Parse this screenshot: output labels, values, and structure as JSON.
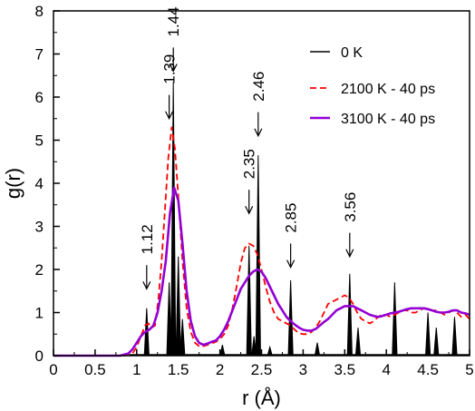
{
  "chart_data": {
    "type": "line",
    "xlabel": "r (Å)",
    "ylabel": "g(r)",
    "xlim": [
      0,
      5
    ],
    "ylim": [
      0,
      8
    ],
    "xticks": [
      0,
      0.5,
      1,
      1.5,
      2,
      2.5,
      3,
      3.5,
      4,
      4.5,
      5
    ],
    "xtick_labels": [
      "0",
      "0.5",
      "1",
      "1.5",
      "2",
      "2.5",
      "3",
      "3.5",
      "4",
      "4.5",
      "5"
    ],
    "yticks": [
      0,
      1,
      2,
      3,
      4,
      5,
      6,
      7,
      8
    ],
    "ytick_labels": [
      "0",
      "1",
      "2",
      "3",
      "4",
      "5",
      "6",
      "7",
      "8"
    ],
    "grid": false,
    "legend_position": "top-right",
    "series": [
      {
        "name": "0 K",
        "style": "spikes",
        "color": "#000000",
        "peaks": [
          {
            "x": 1.12,
            "y": 1.1
          },
          {
            "x": 1.39,
            "y": 1.7
          },
          {
            "x": 1.44,
            "y": 6.35
          },
          {
            "x": 1.5,
            "y": 2.3
          },
          {
            "x": 1.55,
            "y": 0.85
          },
          {
            "x": 2.03,
            "y": 0.25
          },
          {
            "x": 2.35,
            "y": 2.55
          },
          {
            "x": 2.41,
            "y": 0.45
          },
          {
            "x": 2.46,
            "y": 4.65
          },
          {
            "x": 2.6,
            "y": 0.2
          },
          {
            "x": 2.85,
            "y": 1.75
          },
          {
            "x": 3.17,
            "y": 0.3
          },
          {
            "x": 3.56,
            "y": 1.9
          },
          {
            "x": 3.66,
            "y": 0.65
          },
          {
            "x": 4.1,
            "y": 1.7
          },
          {
            "x": 4.5,
            "y": 1.0
          },
          {
            "x": 4.6,
            "y": 0.65
          },
          {
            "x": 4.82,
            "y": 0.9
          }
        ]
      },
      {
        "name": "2100 K - 40 ps",
        "style": "dashed",
        "color": "#ff0000",
        "x": [
          0,
          0.85,
          0.95,
          1.0,
          1.05,
          1.1,
          1.14,
          1.18,
          1.22,
          1.26,
          1.3,
          1.34,
          1.38,
          1.42,
          1.46,
          1.5,
          1.55,
          1.6,
          1.65,
          1.7,
          1.75,
          1.8,
          1.85,
          1.9,
          1.95,
          2.0,
          2.05,
          2.1,
          2.15,
          2.2,
          2.25,
          2.3,
          2.35,
          2.4,
          2.45,
          2.5,
          2.55,
          2.6,
          2.65,
          2.7,
          2.75,
          2.8,
          2.85,
          2.9,
          2.95,
          3.0,
          3.05,
          3.1,
          3.15,
          3.2,
          3.25,
          3.3,
          3.35,
          3.4,
          3.45,
          3.5,
          3.55,
          3.6,
          3.65,
          3.7,
          3.75,
          3.8,
          3.85,
          3.9,
          3.95,
          4.0,
          4.05,
          4.1,
          4.15,
          4.2,
          4.25,
          4.3,
          4.35,
          4.4,
          4.45,
          4.5,
          4.55,
          4.6,
          4.65,
          4.7,
          4.75,
          4.8,
          4.85,
          4.9,
          4.95,
          5.0
        ],
        "y": [
          0,
          0,
          0.05,
          0.2,
          0.45,
          0.7,
          0.75,
          0.65,
          0.7,
          1.3,
          2.2,
          3.4,
          4.6,
          5.3,
          4.8,
          3.7,
          2.2,
          1.1,
          0.55,
          0.3,
          0.22,
          0.22,
          0.25,
          0.28,
          0.32,
          0.38,
          0.5,
          0.7,
          1.1,
          1.6,
          2.15,
          2.5,
          2.6,
          2.55,
          2.35,
          2.0,
          1.6,
          1.25,
          1.0,
          0.85,
          0.8,
          0.75,
          0.7,
          0.6,
          0.52,
          0.5,
          0.5,
          0.55,
          0.65,
          0.8,
          1.0,
          1.2,
          1.25,
          1.3,
          1.35,
          1.4,
          1.35,
          1.2,
          1.0,
          0.85,
          0.8,
          0.75,
          0.8,
          0.9,
          0.95,
          0.95,
          0.9,
          0.95,
          1.0,
          1.05,
          1.05,
          1.0,
          1.0,
          1.05,
          1.1,
          1.1,
          1.05,
          1.05,
          1.0,
          0.95,
          1.0,
          1.05,
          1.0,
          0.9,
          0.95,
          0.85
        ]
      },
      {
        "name": "3100 K - 40 ps",
        "style": "solid",
        "color": "#9400d3",
        "x": [
          0,
          0.8,
          0.9,
          0.95,
          1.0,
          1.05,
          1.1,
          1.15,
          1.2,
          1.25,
          1.3,
          1.35,
          1.4,
          1.45,
          1.5,
          1.55,
          1.6,
          1.65,
          1.7,
          1.75,
          1.8,
          1.85,
          1.9,
          1.95,
          2.0,
          2.05,
          2.1,
          2.15,
          2.2,
          2.25,
          2.3,
          2.35,
          2.4,
          2.45,
          2.5,
          2.55,
          2.6,
          2.65,
          2.7,
          2.75,
          2.8,
          2.85,
          2.9,
          2.95,
          3.0,
          3.05,
          3.1,
          3.15,
          3.2,
          3.25,
          3.3,
          3.35,
          3.4,
          3.45,
          3.5,
          3.55,
          3.6,
          3.65,
          3.7,
          3.75,
          3.8,
          3.85,
          3.9,
          3.95,
          4.0,
          4.05,
          4.1,
          4.15,
          4.2,
          4.25,
          4.3,
          4.35,
          4.4,
          4.45,
          4.5,
          4.55,
          4.6,
          4.65,
          4.7,
          4.75,
          4.8,
          4.85,
          4.9,
          4.95,
          5.0
        ],
        "y": [
          0,
          0,
          0.05,
          0.15,
          0.3,
          0.45,
          0.55,
          0.6,
          0.7,
          1.0,
          1.5,
          2.2,
          3.3,
          3.9,
          3.6,
          2.6,
          1.5,
          0.8,
          0.45,
          0.3,
          0.25,
          0.28,
          0.32,
          0.35,
          0.45,
          0.6,
          0.8,
          1.05,
          1.3,
          1.55,
          1.7,
          1.85,
          1.95,
          2.0,
          1.95,
          1.8,
          1.6,
          1.4,
          1.2,
          1.05,
          0.9,
          0.8,
          0.72,
          0.65,
          0.6,
          0.58,
          0.58,
          0.62,
          0.7,
          0.78,
          0.85,
          0.95,
          1.05,
          1.1,
          1.15,
          1.15,
          1.15,
          1.1,
          1.05,
          1.0,
          0.95,
          0.92,
          0.9,
          0.92,
          0.95,
          0.98,
          1.0,
          1.02,
          1.05,
          1.08,
          1.1,
          1.1,
          1.1,
          1.1,
          1.08,
          1.05,
          1.02,
          1.0,
          1.0,
          1.02,
          1.05,
          1.05,
          1.0,
          0.98,
          0.95
        ]
      }
    ],
    "annotations": [
      {
        "label": "1.12",
        "x": 1.12,
        "arrow_tip_y": 1.55,
        "arrow_tail_y": 2.1,
        "text_y": 2.35
      },
      {
        "label": "1.39",
        "x": 1.39,
        "arrow_tip_y": 5.5,
        "arrow_tail_y": 6.05,
        "text_y": 6.3
      },
      {
        "label": "1.44",
        "x": 1.44,
        "arrow_tip_y": 6.6,
        "arrow_tail_y": 7.15,
        "text_y": 7.4
      },
      {
        "label": "2.35",
        "x": 2.35,
        "arrow_tip_y": 3.3,
        "arrow_tail_y": 3.85,
        "text_y": 4.1
      },
      {
        "label": "2.46",
        "x": 2.46,
        "arrow_tip_y": 5.1,
        "arrow_tail_y": 5.65,
        "text_y": 5.9
      },
      {
        "label": "2.85",
        "x": 2.85,
        "arrow_tip_y": 2.05,
        "arrow_tail_y": 2.6,
        "text_y": 2.85
      },
      {
        "label": "3.56",
        "x": 3.56,
        "arrow_tip_y": 2.3,
        "arrow_tail_y": 2.85,
        "text_y": 3.1
      }
    ]
  }
}
